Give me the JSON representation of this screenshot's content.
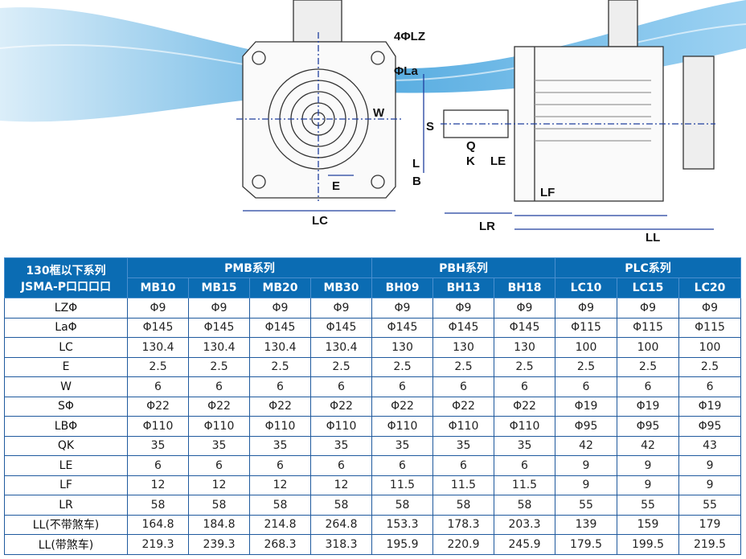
{
  "drawing": {
    "labels": {
      "lz": "4ΦLZ",
      "la": "ΦLa",
      "w": "W",
      "e": "E",
      "lc": "LC",
      "s": "S",
      "q": "Q",
      "k": "K",
      "le": "LE",
      "l": "L",
      "b": "B",
      "lf": "LF",
      "lr": "LR",
      "ll": "LL"
    },
    "colors": {
      "wave": "#1e90d6",
      "dimension_line": "#1f3f9e"
    }
  },
  "table": {
    "corner_line1": "130框以下系列",
    "corner_line2": "JSMA-P口口口口",
    "groups": [
      {
        "label": "PMB系列",
        "models": [
          "MB10",
          "MB15",
          "MB20",
          "MB30"
        ]
      },
      {
        "label": "PBH系列",
        "models": [
          "BH09",
          "BH13",
          "BH18"
        ]
      },
      {
        "label": "PLC系列",
        "models": [
          "LC10",
          "LC15",
          "LC20"
        ]
      }
    ],
    "rows": [
      {
        "param": "LZΦ",
        "values": [
          "Φ9",
          "Φ9",
          "Φ9",
          "Φ9",
          "Φ9",
          "Φ9",
          "Φ9",
          "Φ9",
          "Φ9",
          "Φ9"
        ]
      },
      {
        "param": "LaΦ",
        "values": [
          "Φ145",
          "Φ145",
          "Φ145",
          "Φ145",
          "Φ145",
          "Φ145",
          "Φ145",
          "Φ115",
          "Φ115",
          "Φ115"
        ]
      },
      {
        "param": "LC",
        "values": [
          "130.4",
          "130.4",
          "130.4",
          "130.4",
          "130",
          "130",
          "130",
          "100",
          "100",
          "100"
        ]
      },
      {
        "param": "E",
        "values": [
          "2.5",
          "2.5",
          "2.5",
          "2.5",
          "2.5",
          "2.5",
          "2.5",
          "2.5",
          "2.5",
          "2.5"
        ]
      },
      {
        "param": "W",
        "values": [
          "6",
          "6",
          "6",
          "6",
          "6",
          "6",
          "6",
          "6",
          "6",
          "6"
        ]
      },
      {
        "param": "SΦ",
        "values": [
          "Φ22",
          "Φ22",
          "Φ22",
          "Φ22",
          "Φ22",
          "Φ22",
          "Φ22",
          "Φ19",
          "Φ19",
          "Φ19"
        ]
      },
      {
        "param": "LBΦ",
        "values": [
          "Φ110",
          "Φ110",
          "Φ110",
          "Φ110",
          "Φ110",
          "Φ110",
          "Φ110",
          "Φ95",
          "Φ95",
          "Φ95"
        ]
      },
      {
        "param": "QK",
        "values": [
          "35",
          "35",
          "35",
          "35",
          "35",
          "35",
          "35",
          "42",
          "42",
          "43"
        ]
      },
      {
        "param": "LE",
        "values": [
          "6",
          "6",
          "6",
          "6",
          "6",
          "6",
          "6",
          "9",
          "9",
          "9"
        ]
      },
      {
        "param": "LF",
        "values": [
          "12",
          "12",
          "12",
          "12",
          "11.5",
          "11.5",
          "11.5",
          "9",
          "9",
          "9"
        ]
      },
      {
        "param": "LR",
        "values": [
          "58",
          "58",
          "58",
          "58",
          "58",
          "58",
          "58",
          "55",
          "55",
          "55"
        ]
      },
      {
        "param": "LL(不带煞车)",
        "values": [
          "164.8",
          "184.8",
          "214.8",
          "264.8",
          "153.3",
          "178.3",
          "203.3",
          "139",
          "159",
          "179"
        ]
      },
      {
        "param": "LL(带煞车)",
        "values": [
          "219.3",
          "239.3",
          "268.3",
          "318.3",
          "195.9",
          "220.9",
          "245.9",
          "179.5",
          "199.5",
          "219.5"
        ]
      }
    ],
    "colors": {
      "header_bg": "#0b6cb3",
      "border": "#1f5a9e"
    }
  }
}
